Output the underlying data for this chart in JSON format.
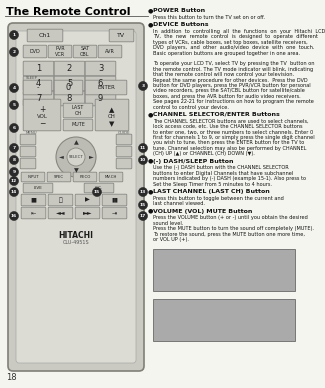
{
  "title": "The Remote Control",
  "bg_color": "#f5f5f0",
  "page_number": "18",
  "remote_fill": "#d4d4cc",
  "remote_inner": "#dcdcd4",
  "button_fill": "#c8c8c0",
  "button_outline": "#888884",
  "callout_fill": "#2a2a2a",
  "sections": [
    {
      "heading": "POWER Button",
      "text": "Press this button to turn the TV set on or off."
    },
    {
      "heading": "DEVICE Buttons",
      "text": "In  addition  to  controlling  all  the  functions  on  your  Hitachi  LCD\nTV,  the  new  remote  control  is  designed  to  operate  different\ntypes of VCRs, cable boxes, set top boxes, satellite receivers,\nDVD  players,  and  other  audio/video  device  with  one  touch.\nBasic operation buttons are grouped together in one area.\n\nTo operate your LCD TV, select TV by pressing the TV  button on\nthe remote control. The TV mode indicator will blink, indicating\nthat the remote control will now control your television.\nRepeat the same procedure for other devices.  Press the DVD\nbutton for DVD players, press the PVR/VCR button for personal\nvideo recorders, press the SAT/CBL button for satellite/cable\nboxes, and press the AVR button for audio video receivers.\nSee pages 22-21 for instructions on how to program the remote\ncontrol to control your device."
    },
    {
      "heading": "CHANNEL SELECTOR/ENTER Buttons",
      "text": "The CHANNEL SELECTOR buttons are used to select channels,\nlock access code, etc. Use the CHANNEL SELECTOR buttons\nto enter one, two, or three numbers to select channels. Enter 0\nfirst for channels 1 to 9, or simply press the single digit channel\nyou wish to tune, then press the ENTER button for the TV to\ntune. Channel selection may also be performed by CHANNEL\n(CH) UP (▲) or CHANNEL (CH) DOWN (▼)."
    },
    {
      "heading": "(-) DASH/SLEEP Button",
      "text": "Use the (-) DASH button with the CHANNEL SELECTOR\nbuttons to enter Digital Channels that have subchannel\nnumbers indicated by (-) DASH (example 15-1). Also press to\nSet the Sleep Timer from 5 minutes to 4 hours."
    },
    {
      "heading": "LAST CHANNEL (LAST CH) Button",
      "text": "Press this button to toggle between the current and\nlast channel viewed."
    },
    {
      "heading": "VOLUME (VOL) MUTE Button",
      "text": "Press the VOLUME button (+ or -) until you obtain the desired\nsound level.\nPress the MUTE button to turn the sound off completely (MUTE).\nTo restore the sound, press the MUTE button one more time,\nor VOL UP (+)."
    }
  ]
}
